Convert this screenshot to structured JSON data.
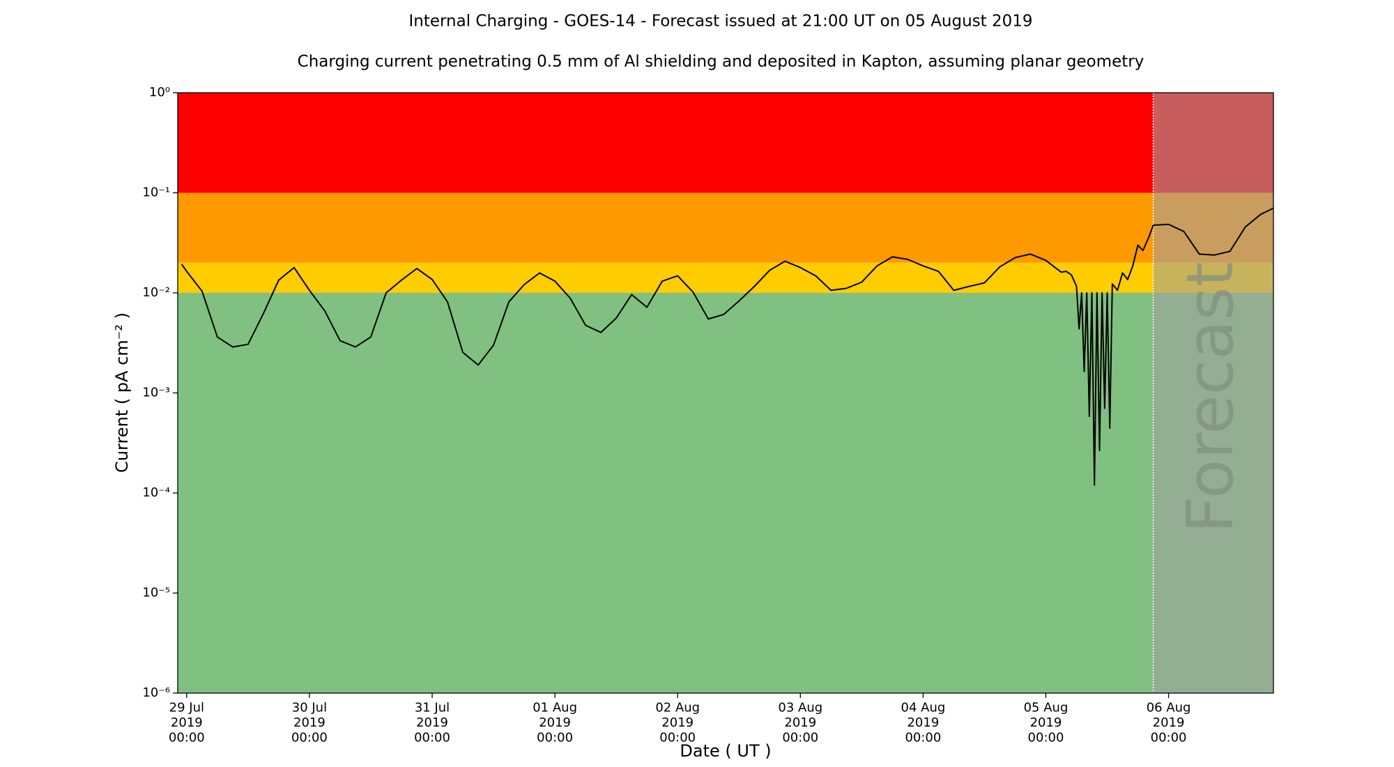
{
  "chart_data": {
    "type": "line",
    "title": "Internal Charging - GOES-14 - Forecast issued at 21:00 UT on 05 August 2019",
    "subtitle": "Charging current penetrating 0.5 mm of Al shielding and deposited in Kapton, assuming planar geometry",
    "x_label": "Date ( UT )",
    "y_label": "Current ( pA cm⁻² )",
    "log_y": true,
    "ylim": [
      1e-06,
      1
    ],
    "yticks": [
      {
        "value": 1e-06,
        "label": "10⁻⁶"
      },
      {
        "value": 1e-05,
        "label": "10⁻⁵"
      },
      {
        "value": 0.0001,
        "label": "10⁻⁴"
      },
      {
        "value": 0.001,
        "label": "10⁻³"
      },
      {
        "value": 0.01,
        "label": "10⁻²"
      },
      {
        "value": 0.1,
        "label": "10⁻¹"
      },
      {
        "value": 1,
        "label": "10⁰"
      }
    ],
    "xlim": [
      "2019-07-28 22:15",
      "2019-08-06 20:30"
    ],
    "xticks": [
      {
        "value": "2019-07-29 00:00",
        "label": "29 Jul\n2019\n00:00"
      },
      {
        "value": "2019-07-30 00:00",
        "label": "30 Jul\n2019\n00:00"
      },
      {
        "value": "2019-07-31 00:00",
        "label": "31 Jul\n2019\n00:00"
      },
      {
        "value": "2019-08-01 00:00",
        "label": "01 Aug\n2019\n00:00"
      },
      {
        "value": "2019-08-02 00:00",
        "label": "02 Aug\n2019\n00:00"
      },
      {
        "value": "2019-08-03 00:00",
        "label": "03 Aug\n2019\n00:00"
      },
      {
        "value": "2019-08-04 00:00",
        "label": "04 Aug\n2019\n00:00"
      },
      {
        "value": "2019-08-05 00:00",
        "label": "05 Aug\n2019\n00:00"
      },
      {
        "value": "2019-08-06 00:00",
        "label": "06 Aug\n2019\n00:00"
      }
    ],
    "zones": [
      {
        "from": 0.1,
        "to": 1,
        "color": "#ff0000"
      },
      {
        "from": 0.02,
        "to": 0.1,
        "color": "#ff9900"
      },
      {
        "from": 0.01,
        "to": 0.02,
        "color": "#ffcc00"
      },
      {
        "from": 1e-06,
        "to": 0.01,
        "color": "#80c080"
      }
    ],
    "forecast": {
      "start": "2019-08-05 21:00",
      "label": "Forecast",
      "color": "#a0a0a0"
    },
    "series": [
      {
        "color": "#000000",
        "x": [
          "2019-07-28 23:00",
          "2019-07-29 00:00",
          "2019-07-29 03:00",
          "2019-07-29 06:00",
          "2019-07-29 09:00",
          "2019-07-29 12:00",
          "2019-07-29 15:00",
          "2019-07-29 18:00",
          "2019-07-29 21:00",
          "2019-07-30 00:00",
          "2019-07-30 03:00",
          "2019-07-30 06:00",
          "2019-07-30 09:00",
          "2019-07-30 12:00",
          "2019-07-30 15:00",
          "2019-07-30 18:00",
          "2019-07-30 21:00",
          "2019-07-31 00:00",
          "2019-07-31 03:00",
          "2019-07-31 06:00",
          "2019-07-31 09:00",
          "2019-07-31 12:00",
          "2019-07-31 15:00",
          "2019-07-31 18:00",
          "2019-07-31 21:00",
          "2019-08-01 00:00",
          "2019-08-01 03:00",
          "2019-08-01 06:00",
          "2019-08-01 09:00",
          "2019-08-01 12:00",
          "2019-08-01 15:00",
          "2019-08-01 18:00",
          "2019-08-01 21:00",
          "2019-08-02 00:00",
          "2019-08-02 03:00",
          "2019-08-02 06:00",
          "2019-08-02 09:00",
          "2019-08-02 12:00",
          "2019-08-02 15:00",
          "2019-08-02 18:00",
          "2019-08-02 21:00",
          "2019-08-03 00:00",
          "2019-08-03 03:00",
          "2019-08-03 06:00",
          "2019-08-03 09:00",
          "2019-08-03 12:00",
          "2019-08-03 15:00",
          "2019-08-03 18:00",
          "2019-08-03 21:00",
          "2019-08-04 00:00",
          "2019-08-04 03:00",
          "2019-08-04 06:00",
          "2019-08-04 09:00",
          "2019-08-04 12:00",
          "2019-08-04 15:00",
          "2019-08-04 18:00",
          "2019-08-04 21:00",
          "2019-08-05 00:00",
          "2019-08-05 03:00",
          "2019-08-05 04:00",
          "2019-08-05 05:00",
          "2019-08-05 06:00",
          "2019-08-05 06:30",
          "2019-08-05 07:00",
          "2019-08-05 07:30",
          "2019-08-05 08:00",
          "2019-08-05 08:30",
          "2019-08-05 09:00",
          "2019-08-05 09:30",
          "2019-08-05 10:00",
          "2019-08-05 10:30",
          "2019-08-05 11:00",
          "2019-08-05 11:30",
          "2019-08-05 12:00",
          "2019-08-05 12:30",
          "2019-08-05 13:00",
          "2019-08-05 14:00",
          "2019-08-05 15:00",
          "2019-08-05 16:00",
          "2019-08-05 17:00",
          "2019-08-05 18:00",
          "2019-08-05 19:00",
          "2019-08-05 20:00",
          "2019-08-05 21:00",
          "2019-08-06 00:00",
          "2019-08-06 03:00",
          "2019-08-06 06:00",
          "2019-08-06 09:00",
          "2019-08-06 12:00",
          "2019-08-06 15:00",
          "2019-08-06 18:00",
          "2019-08-06 20:30"
        ],
        "values": [
          0.0194,
          0.0164,
          0.0104,
          0.00362,
          0.00288,
          0.00306,
          0.00621,
          0.0134,
          0.0179,
          0.0106,
          0.00661,
          0.00333,
          0.00288,
          0.00362,
          0.01,
          0.0134,
          0.0175,
          0.0136,
          0.00813,
          0.00254,
          0.0019,
          0.003,
          0.00813,
          0.0121,
          0.0158,
          0.0131,
          0.00883,
          0.00474,
          0.00402,
          0.0056,
          0.0096,
          0.00718,
          0.0131,
          0.0148,
          0.0102,
          0.00548,
          0.00608,
          0.0083,
          0.0116,
          0.0168,
          0.0207,
          0.0179,
          0.0148,
          0.0106,
          0.0111,
          0.0128,
          0.0186,
          0.0229,
          0.0216,
          0.0186,
          0.0164,
          0.0106,
          0.0116,
          0.0126,
          0.0182,
          0.0225,
          0.0244,
          0.0211,
          0.0161,
          0.0164,
          0.0151,
          0.0116,
          0.00436,
          0.01,
          0.00164,
          0.01,
          0.000583,
          0.01,
          0.00012,
          0.01,
          0.000265,
          0.01,
          0.000703,
          0.01,
          0.000445,
          0.0123,
          0.0106,
          0.0158,
          0.0136,
          0.0186,
          0.03,
          0.0265,
          0.0347,
          0.0474,
          0.0484,
          0.041,
          0.0244,
          0.0239,
          0.026,
          0.0455,
          0.0608,
          0.0703
        ]
      }
    ]
  }
}
